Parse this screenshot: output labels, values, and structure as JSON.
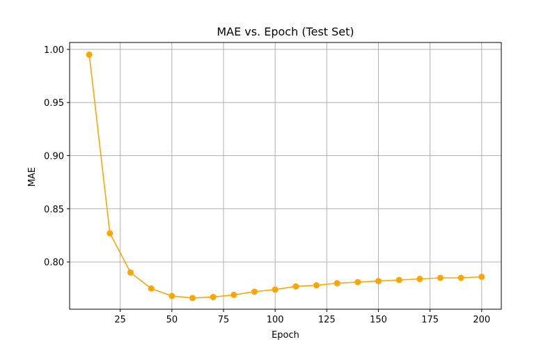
{
  "chart_data": {
    "type": "line",
    "title": "MAE vs. Epoch (Test Set)",
    "xlabel": "Epoch",
    "ylabel": "MAE",
    "xlim": [
      0.5,
      209.5
    ],
    "ylim": [
      0.7555,
      1.0065
    ],
    "xticks": [
      25,
      50,
      75,
      100,
      125,
      150,
      175,
      200
    ],
    "yticks": [
      0.8,
      0.85,
      0.9,
      0.95,
      1.0
    ],
    "xtick_labels": [
      "25",
      "50",
      "75",
      "100",
      "125",
      "150",
      "175",
      "200"
    ],
    "ytick_labels": [
      "0.80",
      "0.85",
      "0.90",
      "0.95",
      "1.00"
    ],
    "grid": true,
    "series": [
      {
        "color": "#FFA500",
        "marker": "circle",
        "x": [
          10,
          20,
          30,
          40,
          50,
          60,
          70,
          80,
          90,
          100,
          110,
          120,
          130,
          140,
          150,
          160,
          170,
          180,
          190,
          200
        ],
        "y": [
          0.995,
          0.827,
          0.79,
          0.775,
          0.768,
          0.766,
          0.767,
          0.769,
          0.772,
          0.774,
          0.777,
          0.778,
          0.78,
          0.781,
          0.782,
          0.783,
          0.784,
          0.785,
          0.785,
          0.786
        ]
      }
    ]
  }
}
